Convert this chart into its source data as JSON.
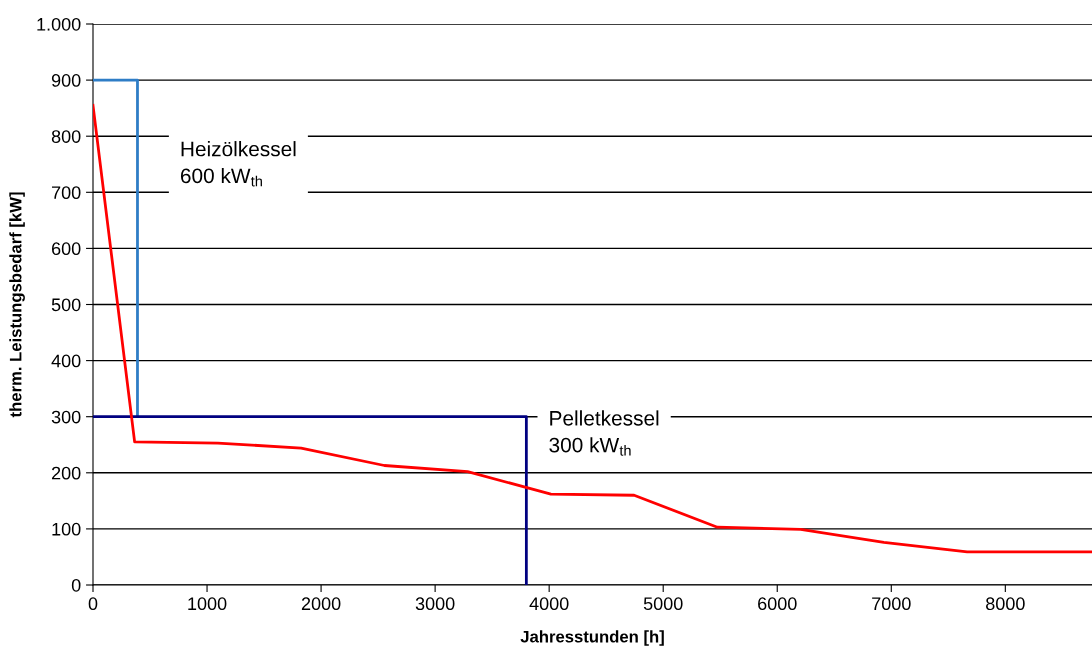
{
  "chart_data": {
    "type": "line",
    "xlabel": "Jahresstunden [h]",
    "ylabel": "therm. Leistungsbedarf [kW]",
    "xlim": [
      0,
      8760
    ],
    "xticks": [
      0,
      1000,
      2000,
      3000,
      4000,
      5000,
      6000,
      7000,
      8000
    ],
    "ylim": [
      0,
      1000
    ],
    "yticks": [
      0,
      100,
      200,
      300,
      400,
      500,
      600,
      700,
      800,
      900,
      {
        "value": 1000,
        "label": "1.000"
      }
    ],
    "grid": "y",
    "legend": false,
    "marker": "none",
    "line_style": "solid",
    "series": [
      {
        "color": "#2e7dc6",
        "x": [
          0,
          390,
          390
        ],
        "values": [
          900,
          900,
          300
        ]
      },
      {
        "color": "#000080",
        "x": [
          0,
          3800,
          3800
        ],
        "values": [
          300,
          300,
          0
        ]
      },
      {
        "color": "#ff0000",
        "x": [
          0,
          365,
          1095,
          1825,
          2555,
          3285,
          4015,
          4745,
          5475,
          6205,
          6935,
          7665,
          8760
        ],
        "values": [
          855,
          255,
          253,
          244,
          213,
          202,
          162,
          160,
          103,
          99,
          76,
          59,
          59
        ]
      }
    ],
    "annotations": [
      "Heizölkessel\n600 kW$_{th}$",
      "Pelletkessel\n300 kW$_{th}$"
    ]
  }
}
